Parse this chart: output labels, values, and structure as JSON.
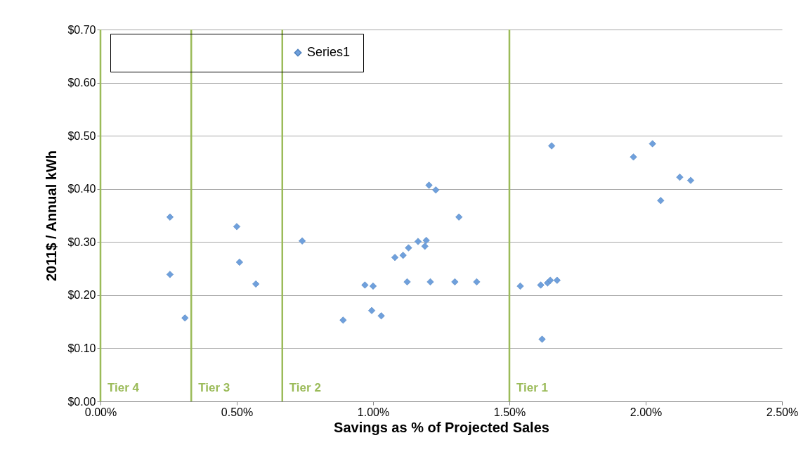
{
  "chart_data": {
    "type": "scatter",
    "xlabel": "Savings as % of Projected Sales",
    "ylabel": "2011$ / Annual kWh",
    "x": [
      0.255,
      0.255,
      0.31,
      0.5,
      0.51,
      0.57,
      0.74,
      0.89,
      0.97,
      1.0,
      0.995,
      1.03,
      1.08,
      1.11,
      1.13,
      1.125,
      1.165,
      1.19,
      1.195,
      1.205,
      1.23,
      1.21,
      1.3,
      1.315,
      1.38,
      1.54,
      1.615,
      1.62,
      1.64,
      1.65,
      1.675,
      1.655,
      1.955,
      2.025,
      2.055,
      2.125,
      2.165
    ],
    "series": [
      {
        "name": "Series1",
        "color": "#6fa0dc",
        "values": [
          0.347,
          0.239,
          0.157,
          0.329,
          0.262,
          0.221,
          0.302,
          0.153,
          0.219,
          0.217,
          0.171,
          0.161,
          0.271,
          0.275,
          0.289,
          0.225,
          0.301,
          0.292,
          0.303,
          0.407,
          0.398,
          0.225,
          0.225,
          0.347,
          0.225,
          0.217,
          0.219,
          0.117,
          0.223,
          0.228,
          0.228,
          0.481,
          0.46,
          0.485,
          0.378,
          0.422,
          0.416
        ]
      }
    ],
    "xlim": [
      0,
      2.5
    ],
    "xticks": [
      {
        "value": 0,
        "label": "0.00%"
      },
      {
        "value": 0.5,
        "label": "0.50%"
      },
      {
        "value": 1,
        "label": "1.00%"
      },
      {
        "value": 1.5,
        "label": "1.50%"
      },
      {
        "value": 2,
        "label": "2.00%"
      },
      {
        "value": 2.5,
        "label": "2.50%"
      }
    ],
    "ylim": [
      0,
      0.7
    ],
    "yticks": [
      {
        "value": 0,
        "label": "$0.00"
      },
      {
        "value": 0.1,
        "label": "$0.10"
      },
      {
        "value": 0.2,
        "label": "$0.20"
      },
      {
        "value": 0.3,
        "label": "$0.30"
      },
      {
        "value": 0.4,
        "label": "$0.40"
      },
      {
        "value": 0.5,
        "label": "$0.50"
      },
      {
        "value": 0.6,
        "label": "$0.60"
      },
      {
        "value": 0.7,
        "label": "$0.70"
      }
    ],
    "ref_lines": [
      {
        "axis": "x",
        "value": 0,
        "label": "Tier 4",
        "color": "#9bbb59"
      },
      {
        "axis": "x",
        "value": 0.333,
        "label": "Tier 3",
        "color": "#9bbb59"
      },
      {
        "axis": "x",
        "value": 0.667,
        "label": "Tier 2",
        "color": "#9bbb59"
      },
      {
        "axis": "x",
        "value": 1.5,
        "label": "Tier 1",
        "color": "#9bbb59"
      }
    ],
    "grid": "y",
    "legend": "top left",
    "marker": "diamond"
  }
}
